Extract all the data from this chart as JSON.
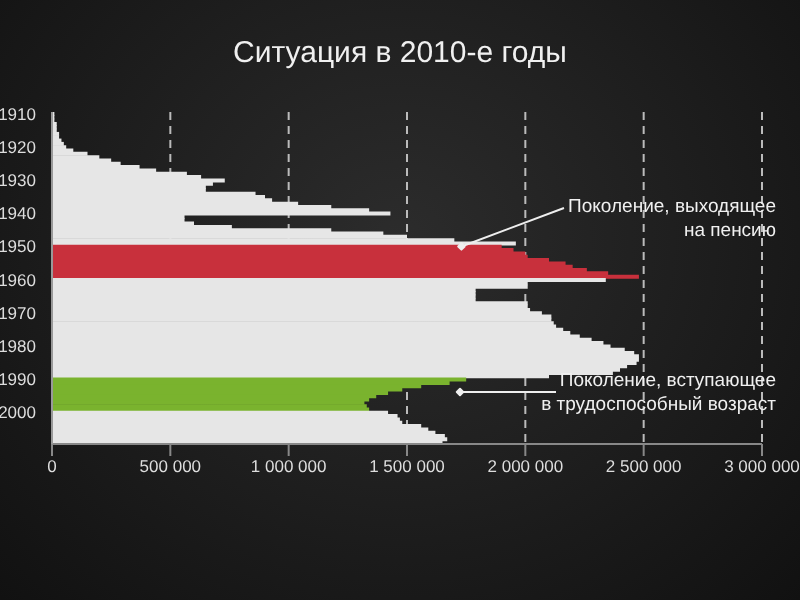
{
  "chart_data": {
    "type": "bar",
    "orientation": "horizontal",
    "title": "Ситуация в 2010-е годы",
    "categories": [
      "1910",
      null,
      null,
      null,
      null,
      null,
      null,
      null,
      null,
      null,
      "1920",
      null,
      null,
      null,
      null,
      null,
      null,
      null,
      null,
      null,
      "1930",
      null,
      null,
      null,
      null,
      null,
      null,
      null,
      null,
      null,
      "1940",
      null,
      null,
      null,
      null,
      null,
      null,
      null,
      null,
      null,
      "1950",
      null,
      null,
      null,
      null,
      null,
      null,
      null,
      null,
      null,
      "1960",
      null,
      null,
      null,
      null,
      null,
      null,
      null,
      null,
      null,
      "1970",
      null,
      null,
      null,
      null,
      null,
      null,
      null,
      null,
      null,
      "1980",
      null,
      null,
      null,
      null,
      null,
      null,
      null,
      null,
      null,
      "1990",
      null,
      null,
      null,
      null,
      null,
      null,
      null,
      null,
      null,
      "2000",
      null,
      null,
      null,
      null,
      null,
      null,
      null,
      null,
      null
    ],
    "values": [
      10000,
      10000,
      10000,
      20000,
      20000,
      20000,
      30000,
      30000,
      40000,
      50000,
      60000,
      90000,
      150000,
      200000,
      250000,
      290000,
      370000,
      440000,
      570000,
      630000,
      730000,
      680000,
      650000,
      650000,
      860000,
      900000,
      930000,
      1040000,
      1180000,
      1340000,
      1430000,
      560000,
      560000,
      600000,
      760000,
      1180000,
      1400000,
      1500000,
      1700000,
      1960000,
      1900000,
      1950000,
      2000000,
      2010000,
      2100000,
      2170000,
      2200000,
      2260000,
      2350000,
      2480000,
      2340000,
      2010000,
      2010000,
      1790000,
      1790000,
      1790000,
      1790000,
      2010000,
      2010000,
      2020000,
      2070000,
      2110000,
      2110000,
      2120000,
      2130000,
      2160000,
      2190000,
      2230000,
      2280000,
      2330000,
      2360000,
      2420000,
      2460000,
      2480000,
      2480000,
      2470000,
      2430000,
      2400000,
      2370000,
      2100000,
      1750000,
      1680000,
      1560000,
      1480000,
      1420000,
      1370000,
      1340000,
      1320000,
      1330000,
      1340000,
      1420000,
      1460000,
      1470000,
      1480000,
      1560000,
      1590000,
      1620000,
      1660000,
      1670000,
      1650000
    ],
    "colors": [
      "#e6e6e6",
      "#e6e6e6",
      "#e6e6e6",
      "#e6e6e6",
      "#e6e6e6",
      "#e6e6e6",
      "#e6e6e6",
      "#e6e6e6",
      "#e6e6e6",
      "#e6e6e6",
      "#e6e6e6",
      "#e6e6e6",
      "#e6e6e6",
      "#e6e6e6",
      "#e6e6e6",
      "#e6e6e6",
      "#e6e6e6",
      "#e6e6e6",
      "#e6e6e6",
      "#e6e6e6",
      "#e6e6e6",
      "#e6e6e6",
      "#e6e6e6",
      "#e6e6e6",
      "#e6e6e6",
      "#e6e6e6",
      "#e6e6e6",
      "#e6e6e6",
      "#e6e6e6",
      "#e6e6e6",
      "#e6e6e6",
      "#e6e6e6",
      "#e6e6e6",
      "#e6e6e6",
      "#e6e6e6",
      "#e6e6e6",
      "#e6e6e6",
      "#e6e6e6",
      "#e6e6e6",
      "#e6e6e6",
      "#c8303c",
      "#c8303c",
      "#c8303c",
      "#c8303c",
      "#c8303c",
      "#c8303c",
      "#c8303c",
      "#c8303c",
      "#c8303c",
      "#c8303c",
      "#e6e6e6",
      "#e6e6e6",
      "#e6e6e6",
      "#e6e6e6",
      "#e6e6e6",
      "#e6e6e6",
      "#e6e6e6",
      "#e6e6e6",
      "#e6e6e6",
      "#e6e6e6",
      "#e6e6e6",
      "#e6e6e6",
      "#e6e6e6",
      "#e6e6e6",
      "#e6e6e6",
      "#e6e6e6",
      "#e6e6e6",
      "#e6e6e6",
      "#e6e6e6",
      "#e6e6e6",
      "#e6e6e6",
      "#e6e6e6",
      "#e6e6e6",
      "#e6e6e6",
      "#e6e6e6",
      "#e6e6e6",
      "#e6e6e6",
      "#e6e6e6",
      "#e6e6e6",
      "#e6e6e6",
      "#7ab32e",
      "#7ab32e",
      "#7ab32e",
      "#7ab32e",
      "#7ab32e",
      "#7ab32e",
      "#7ab32e",
      "#7ab32e",
      "#7ab32e",
      "#7ab32e",
      "#e6e6e6",
      "#e6e6e6",
      "#e6e6e6",
      "#e6e6e6",
      "#e6e6e6",
      "#e6e6e6",
      "#e6e6e6",
      "#e6e6e6",
      "#e6e6e6",
      "#e6e6e6"
    ],
    "xlim": [
      0,
      3000000
    ],
    "xticks": [
      {
        "value": 0,
        "label": "0"
      },
      {
        "value": 500000,
        "label": "500 000"
      },
      {
        "value": 1000000,
        "label": "1 000 000"
      },
      {
        "value": 1500000,
        "label": "1 500 000"
      },
      {
        "value": 2000000,
        "label": "2 000 000"
      },
      {
        "value": 2500000,
        "label": "2 500 000"
      },
      {
        "value": 3000000,
        "label": "3 000 000"
      }
    ],
    "grid": "x",
    "annotations": [
      {
        "text": "Поколение, выходящее\nна пенсию",
        "x": 1730000,
        "y": "1950"
      },
      "Поколение, вступающее\nв трудоспособный возраст"
    ]
  }
}
